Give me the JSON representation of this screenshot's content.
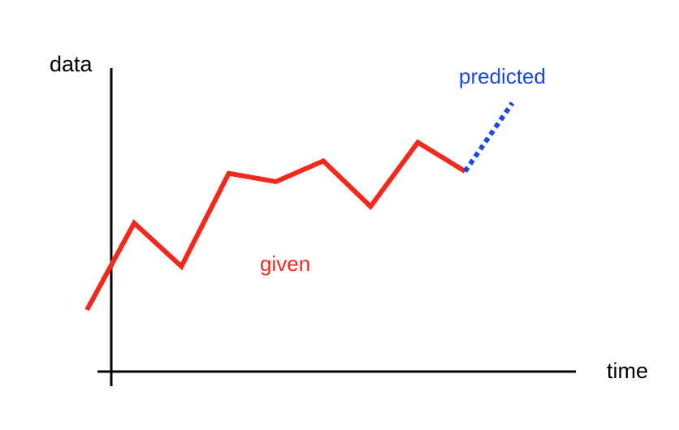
{
  "chart_data": {
    "type": "line",
    "xlabel": "time",
    "ylabel": "data",
    "grid": false,
    "legend": "none",
    "series": [
      {
        "name": "given",
        "color": "#f2291f",
        "style": "solid",
        "points": [
          [
            0,
            0
          ],
          [
            1,
            4.2
          ],
          [
            2,
            2.1
          ],
          [
            3,
            6.6
          ],
          [
            4,
            6.2
          ],
          [
            5,
            7.2
          ],
          [
            6,
            5.0
          ],
          [
            7,
            8.1
          ],
          [
            8,
            6.7
          ]
        ]
      },
      {
        "name": "predicted",
        "color": "#1d47e3",
        "style": "dotted",
        "points": [
          [
            8,
            6.7
          ],
          [
            9,
            10.0
          ]
        ]
      }
    ]
  }
}
